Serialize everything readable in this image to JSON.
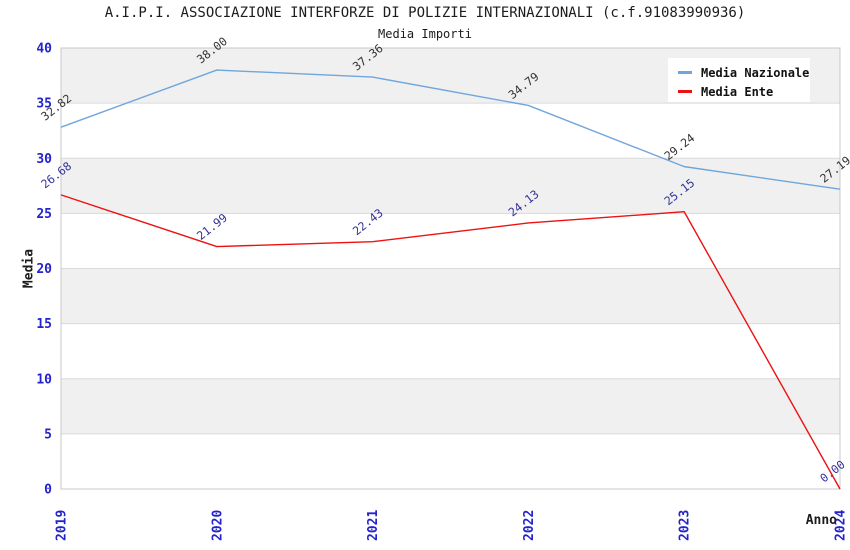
{
  "chart_data": {
    "type": "line",
    "title": "A.I.P.I. ASSOCIAZIONE INTERFORZE DI POLIZIE INTERNAZIONALI (c.f.91083990936)",
    "subtitle": "Media Importi",
    "xlabel": "Anno",
    "ylabel": "Media",
    "categories": [
      "2019",
      "2020",
      "2021",
      "2022",
      "2023",
      "2024"
    ],
    "ylim": [
      0,
      40
    ],
    "ytick_step": 5,
    "yticks": [
      0,
      5,
      10,
      15,
      20,
      25,
      30,
      35,
      40
    ],
    "grid": "horizontal-bands-alternating",
    "legend_position": "top-right",
    "series": [
      {
        "name": "Media Nazionale",
        "color": "#6FA6DC",
        "label_color": "#333333",
        "values": [
          32.82,
          38.0,
          37.36,
          34.79,
          29.24,
          27.19
        ]
      },
      {
        "name": "Media Ente",
        "color": "#EE1111",
        "label_color": "#333399",
        "values": [
          26.68,
          21.99,
          22.43,
          24.13,
          25.15,
          0.0
        ]
      }
    ]
  },
  "colors": {
    "tick_label": "#2323CC",
    "band": "#F0F0F0",
    "gridline": "#DADADA",
    "plot_border": "#C8C8C8",
    "background": "#FFFFFF",
    "title_color": "#1C1C1C"
  }
}
